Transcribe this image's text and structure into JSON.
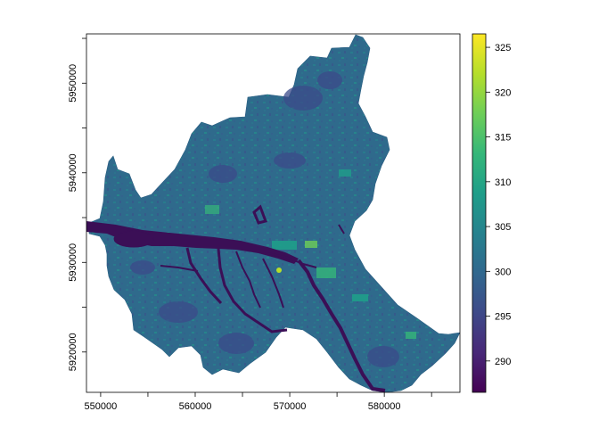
{
  "map": {
    "x_ticks": [
      "550000",
      "560000",
      "570000",
      "580000"
    ],
    "y_ticks": [
      "5920000",
      "5930000",
      "5940000",
      "5950000"
    ],
    "x_range": [
      548500,
      588000
    ],
    "y_range": [
      5915500,
      5955500
    ]
  },
  "colorbar": {
    "ticks": [
      "290",
      "295",
      "300",
      "305",
      "310",
      "315",
      "320",
      "325"
    ],
    "range": [
      286.5,
      326.5
    ],
    "palette": [
      "#440154",
      "#482878",
      "#3e4a89",
      "#31688e",
      "#26828e",
      "#1f9e89",
      "#35b779",
      "#6ece58",
      "#b5de2b",
      "#fde725"
    ]
  },
  "colors": {
    "land_base": "#2f6a8c",
    "water": "#3b0f56"
  }
}
